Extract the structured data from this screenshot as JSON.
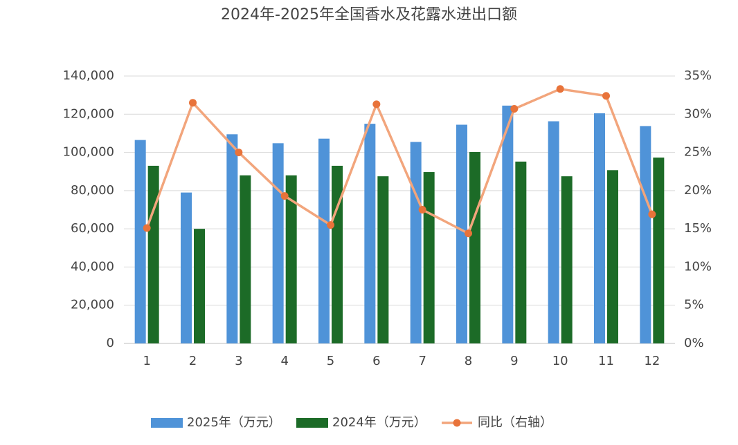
{
  "chart_data": {
    "type": "bar_line",
    "title": "2024年-2025年全国香水及花露水进出口额",
    "categories": [
      "1",
      "2",
      "3",
      "4",
      "5",
      "6",
      "7",
      "8",
      "9",
      "10",
      "11",
      "12"
    ],
    "series": [
      {
        "name": "2025年（万元）",
        "type": "bar",
        "color": "#4f93d8",
        "values": [
          106500,
          79000,
          109500,
          104800,
          107200,
          115000,
          105500,
          114500,
          124500,
          116300,
          120500,
          113800
        ]
      },
      {
        "name": "2024年（万元）",
        "type": "bar",
        "color": "#1c6b27",
        "values": [
          93000,
          60000,
          88000,
          88000,
          93000,
          87500,
          89700,
          100200,
          95200,
          87500,
          90700,
          97300
        ]
      },
      {
        "name": "同比（右轴）",
        "type": "line",
        "axis": "y2",
        "color": "#f2a57c",
        "marker_color": "#e8733a",
        "values": [
          15.1,
          31.5,
          25.0,
          19.3,
          15.5,
          31.3,
          17.5,
          14.4,
          30.7,
          33.3,
          32.4,
          16.9
        ]
      }
    ],
    "ylim": [
      0,
      140000
    ],
    "yticks": [
      0,
      {
        "value": 20000,
        "label": "20,000"
      },
      {
        "value": 40000,
        "label": "40,000"
      },
      {
        "value": 60000,
        "label": "60,000"
      },
      {
        "value": 80000,
        "label": "80,000"
      },
      {
        "value": 100000,
        "label": "100,000"
      },
      {
        "value": 120000,
        "label": "120,000"
      },
      {
        "value": 140000,
        "label": "140,000"
      }
    ],
    "y2lim": [
      0,
      35
    ],
    "y2ticks": [
      {
        "value": 0,
        "label": "0%"
      },
      {
        "value": 5,
        "label": "5%"
      },
      {
        "value": 10,
        "label": "10%"
      },
      {
        "value": 15,
        "label": "15%"
      },
      {
        "value": 20,
        "label": "20%"
      },
      {
        "value": 25,
        "label": "25%"
      },
      {
        "value": 30,
        "label": "30%"
      },
      {
        "value": 35,
        "label": "35%"
      }
    ],
    "grid": true,
    "legend": "bottom"
  }
}
